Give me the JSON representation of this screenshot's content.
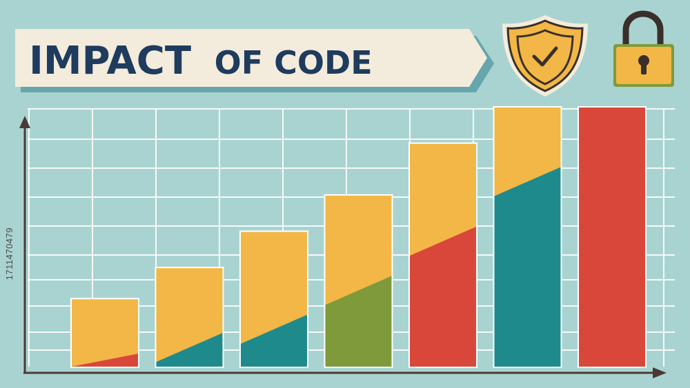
{
  "header": {
    "title_main": "IMPACT",
    "title_rest": "OF CODE"
  },
  "side_code": "1711470479",
  "icons": {
    "shield": "shield-check-icon",
    "lock": "padlock-icon"
  },
  "colors": {
    "background": "#a9d3d0",
    "banner": "#f3ecdc",
    "title": "#1f3b5e",
    "yellow": "#f2b746",
    "teal": "#1f8a8c",
    "red": "#d9473a",
    "green": "#7f9a3b",
    "axis": "#4a3a36",
    "grid": "#ffffff"
  },
  "chart_data": {
    "type": "bar",
    "stacked": true,
    "title": "IMPACT OF CODE",
    "xlabel": "",
    "ylabel": "",
    "ylim": [
      0,
      10
    ],
    "grid": true,
    "legend": "none",
    "bars": [
      {
        "total": 2.6,
        "base": 0.5,
        "base_color": "red"
      },
      {
        "total": 3.8,
        "base": 1.3,
        "base_color": "teal"
      },
      {
        "total": 5.2,
        "base": 2.0,
        "base_color": "teal"
      },
      {
        "total": 6.6,
        "base": 3.5,
        "base_color": "green"
      },
      {
        "total": 8.6,
        "base": 5.4,
        "base_color": "red"
      },
      {
        "total": 10.0,
        "base": 7.7,
        "base_color": "teal"
      },
      {
        "total": 10.0,
        "base": 10.0,
        "base_color": "red"
      }
    ]
  }
}
